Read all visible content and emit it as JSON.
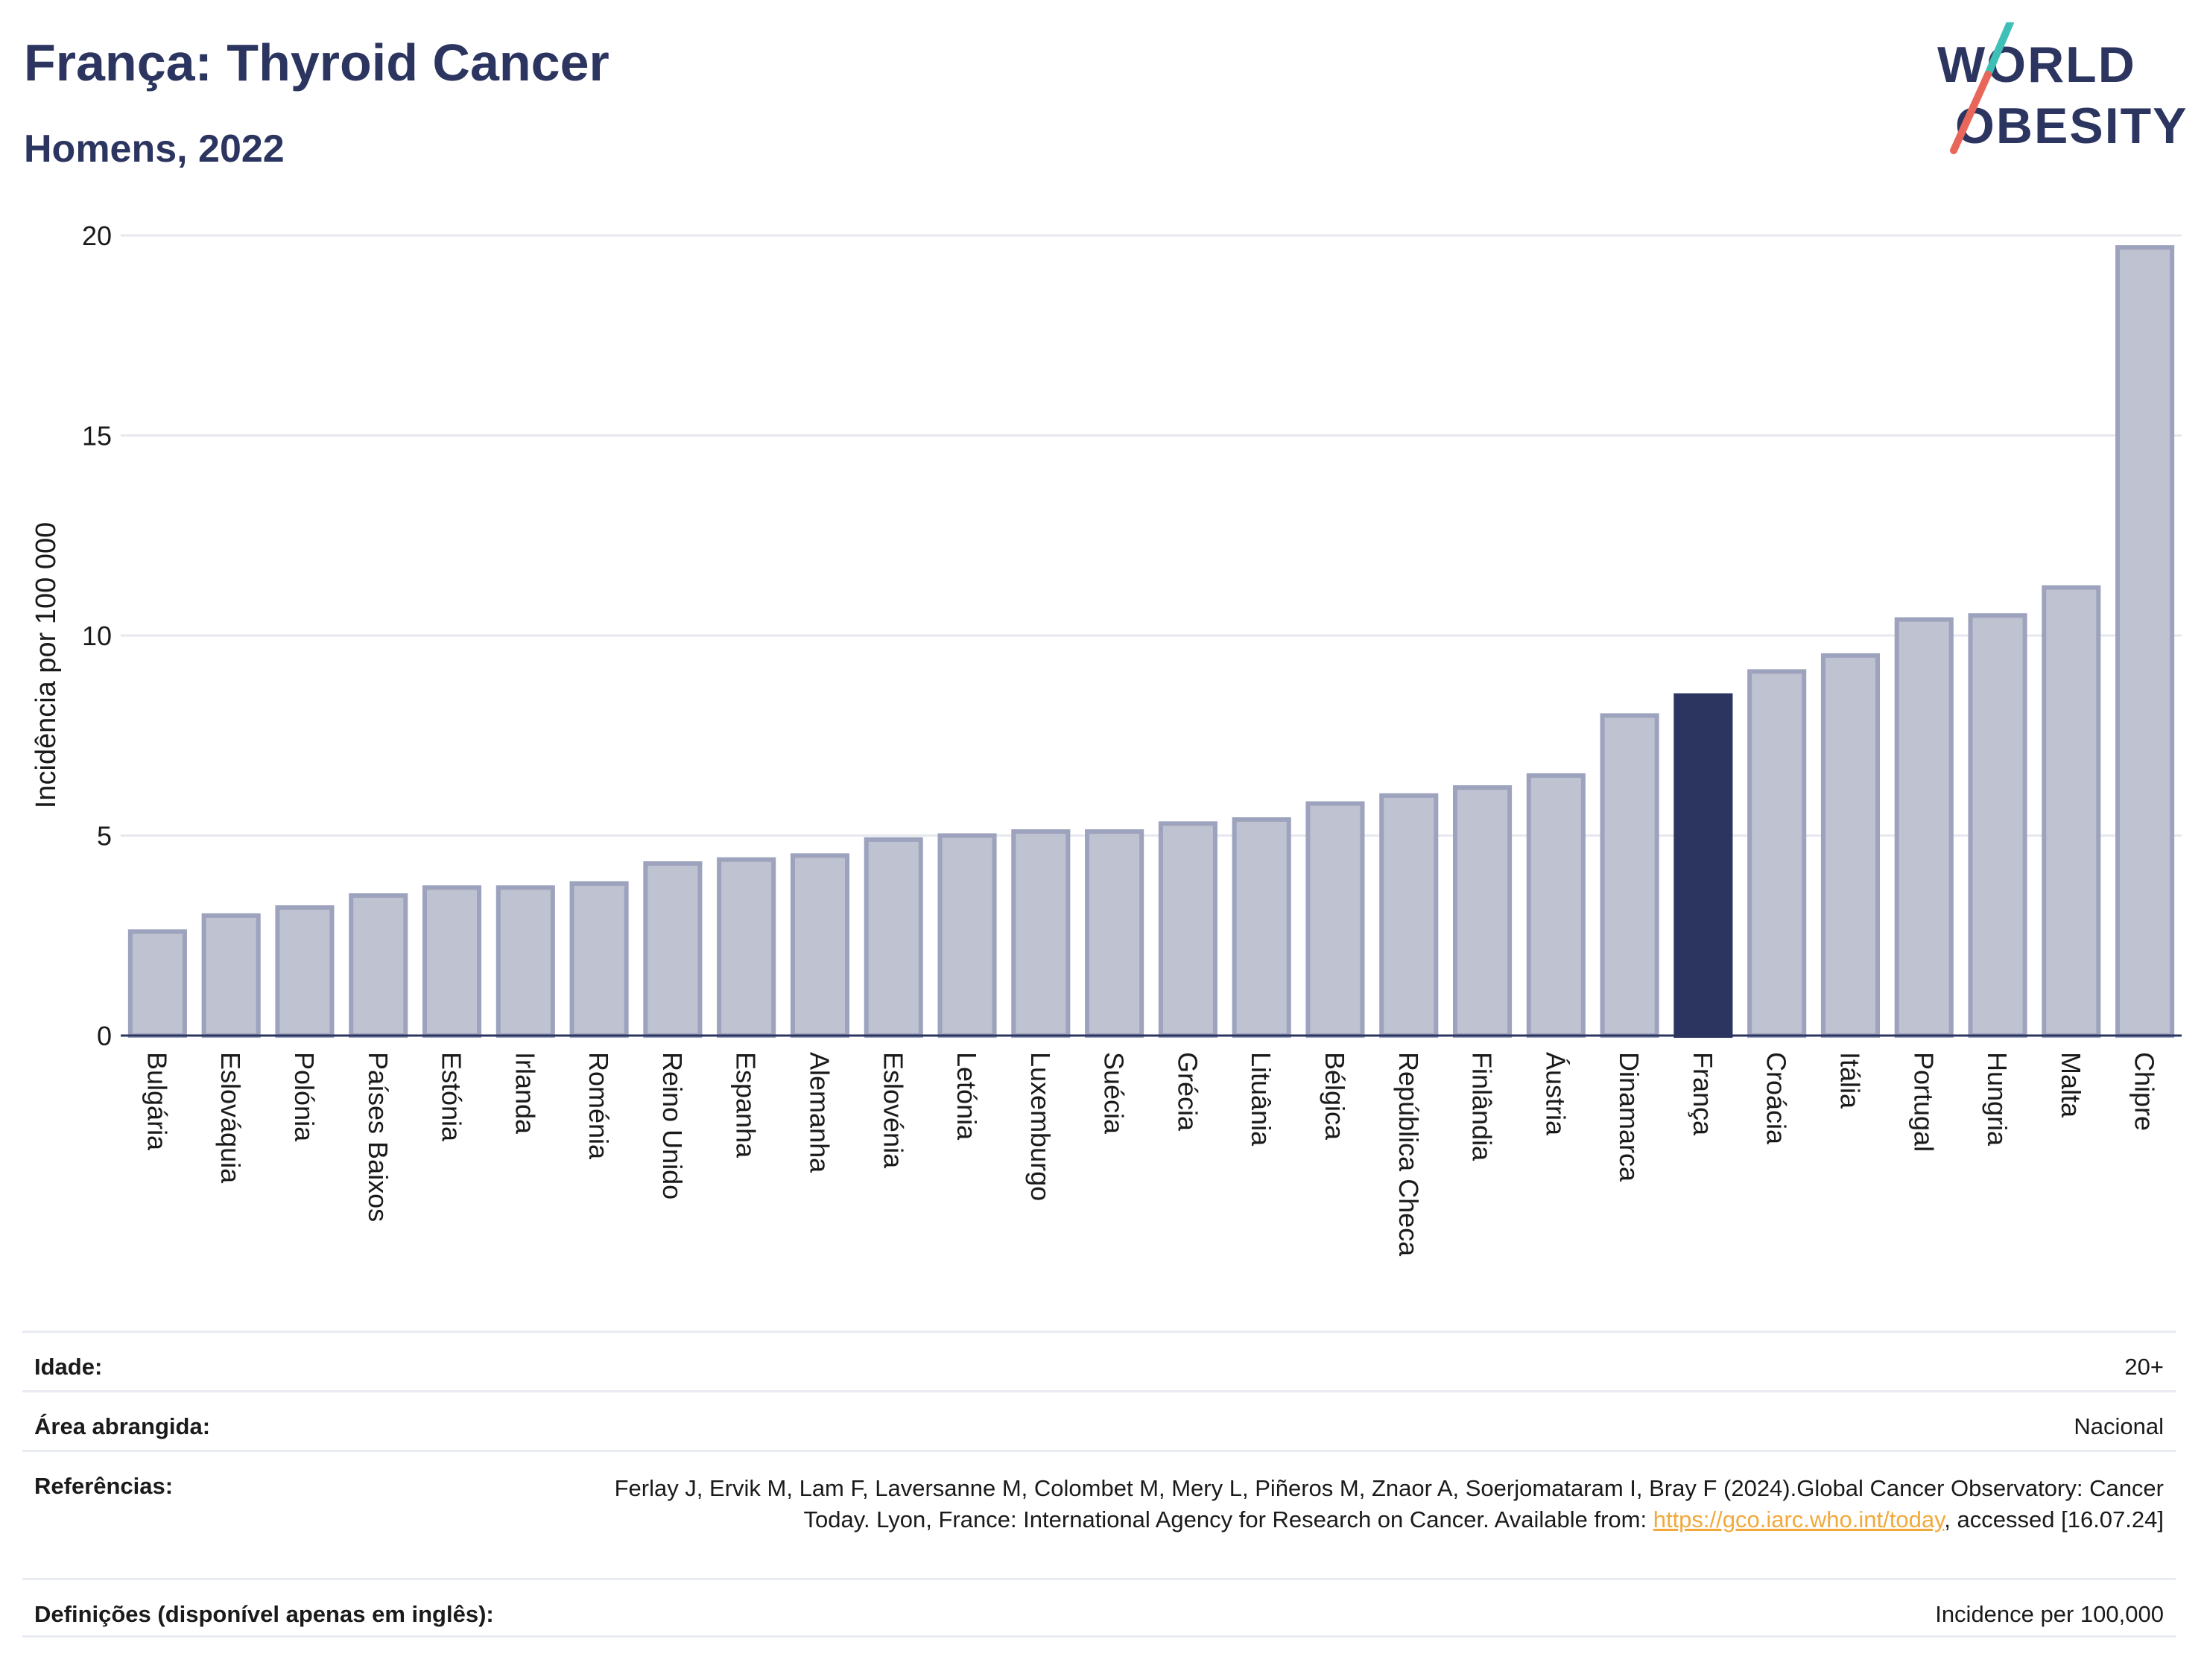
{
  "header": {
    "title": "França: Thyroid Cancer",
    "subtitle": "Homens, 2022"
  },
  "logo": {
    "line1": "WORLD",
    "line2": "OBESITY",
    "colors": {
      "text": "#2b3560",
      "slash_top": "#3fbfb5",
      "slash_bottom": "#e8675a"
    }
  },
  "colors": {
    "bar": "#bfc2d0",
    "bar_stroke": "#9da2bd",
    "highlight": "#2b3560",
    "grid": "#e6e8ee",
    "axis": "#2b3560"
  },
  "chart_data": {
    "type": "bar",
    "ylabel": "Incidência por 100 000",
    "xlabel": "",
    "ylim": [
      0,
      20
    ],
    "yticks": [
      0,
      5,
      10,
      15,
      20
    ],
    "grid": true,
    "highlight_category": "França",
    "categories": [
      "Bulgária",
      "Eslováquia",
      "Polónia",
      "Países Baixos",
      "Estónia",
      "Irlanda",
      "Roménia",
      "Reino Unido",
      "Espanha",
      "Alemanha",
      "Eslovénia",
      "Letónia",
      "Luxemburgo",
      "Suécia",
      "Grécia",
      "Lituânia",
      "Bélgica",
      "República Checa",
      "Finlândia",
      "Áustria",
      "Dinamarca",
      "França",
      "Croácia",
      "Itália",
      "Portugal",
      "Hungria",
      "Malta",
      "Chipre"
    ],
    "values": [
      2.6,
      3.0,
      3.2,
      3.5,
      3.7,
      3.7,
      3.8,
      4.3,
      4.4,
      4.5,
      4.9,
      5.0,
      5.1,
      5.1,
      5.3,
      5.4,
      5.8,
      6.0,
      6.2,
      6.5,
      8.0,
      8.5,
      9.1,
      9.5,
      10.4,
      10.5,
      11.2,
      19.7
    ]
  },
  "meta": {
    "age_label": "Idade:",
    "age_value": "20+",
    "area_label": "Área abrangida:",
    "area_value": "Nacional",
    "ref_label": "Referências:",
    "ref_text_1": "Ferlay J, Ervik M, Lam F, Laversanne M, Colombet M, Mery L, Piñeros M, Znaor A, Soerjomataram I, Bray F (2024).Global Cancer Observatory: Cancer Today. Lyon, France: International Agency for Research on Cancer. Available from: ",
    "ref_link": "https://gco.iarc.who.int/today",
    "ref_text_2": ", accessed [16.07.24]",
    "def_label": "Definições (disponível apenas em inglês):",
    "def_value": "Incidence per 100,000"
  }
}
